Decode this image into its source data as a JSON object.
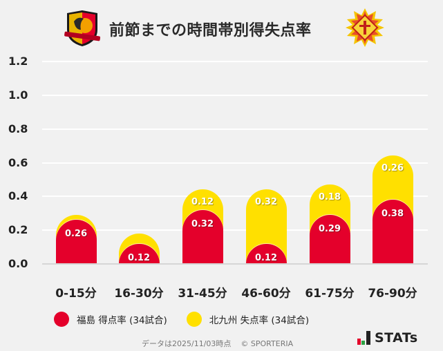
{
  "header": {
    "title": "前節までの時間帯別得失点率",
    "home_logo": "fukushima-united-fc-crest",
    "away_logo": "giravanz-kitakyushu-crest"
  },
  "colors": {
    "home": "#e4002b",
    "away": "#ffe000",
    "background": "#f1f1f1",
    "grid": "#ffffff"
  },
  "chart_data": {
    "type": "bar",
    "stacked": true,
    "title": "前節までの時間帯別得失点率",
    "xlabel": "",
    "ylabel": "",
    "ylim": [
      0,
      1.2
    ],
    "yticks": [
      "0.0",
      "0.2",
      "0.4",
      "0.6",
      "0.8",
      "1.0",
      "1.2"
    ],
    "grid": true,
    "legend_position": "bottom",
    "categories": [
      "0-15分",
      "16-30分",
      "31-45分",
      "46-60分",
      "61-75分",
      "76-90分"
    ],
    "series": [
      {
        "name": "福島 得点率 (34試合)",
        "color": "#e4002b",
        "values": [
          0.26,
          0.12,
          0.32,
          0.12,
          0.29,
          0.38
        ]
      },
      {
        "name": "北九州 失点率 (34試合)",
        "color": "#ffe000",
        "values": [
          0.03,
          0.06,
          0.12,
          0.32,
          0.18,
          0.26
        ],
        "labels": [
          "",
          "",
          "0.12",
          "0.32",
          "0.18",
          "0.26"
        ]
      }
    ]
  },
  "labels": {
    "home": [
      "0.26",
      "0.12",
      "0.32",
      "0.12",
      "0.29",
      "0.38"
    ],
    "away": [
      "",
      "",
      "0.12",
      "0.32",
      "0.18",
      "0.26"
    ]
  },
  "legend": {
    "home": "福島 得点率 (34試合)",
    "away": "北九州 失点率 (34試合)"
  },
  "footer": {
    "note": "データは2025/11/03時点",
    "copyright": "© SPORTERIA",
    "brand": "STATs"
  }
}
